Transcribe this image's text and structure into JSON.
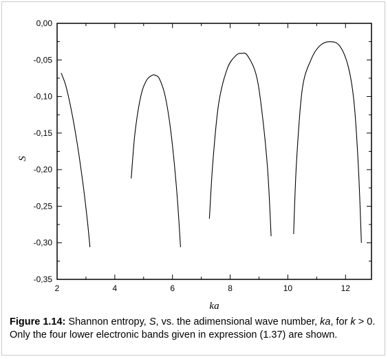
{
  "chart_data": {
    "type": "line",
    "title": "",
    "xlabel": "ka",
    "ylabel": "S",
    "xlim": [
      2.0,
      12.9
    ],
    "ylim": [
      -0.35,
      0.0
    ],
    "xticks": [
      2,
      4,
      6,
      8,
      10,
      12
    ],
    "xtick_labels": [
      "2",
      "4",
      "6",
      "8",
      "10",
      "12"
    ],
    "yticks": [
      0.0,
      -0.05,
      -0.1,
      -0.15,
      -0.2,
      -0.25,
      -0.3,
      -0.35
    ],
    "ytick_labels": [
      "0,00",
      "-0,05",
      "-0,10",
      "-0,15",
      "-0,20",
      "-0,25",
      "-0,30",
      "-0,35"
    ],
    "grid": false,
    "series": [
      {
        "x": [
          2.14,
          2.3,
          2.5,
          2.7,
          2.9,
          3.05,
          3.14
        ],
        "y": [
          -0.068,
          -0.085,
          -0.12,
          -0.165,
          -0.22,
          -0.27,
          -0.306
        ]
      },
      {
        "x": [
          4.57,
          4.7,
          4.9,
          5.1,
          5.3,
          5.4,
          5.55,
          5.75,
          5.95,
          6.15,
          6.28
        ],
        "y": [
          -0.212,
          -0.15,
          -0.1,
          -0.078,
          -0.071,
          -0.071,
          -0.076,
          -0.1,
          -0.15,
          -0.23,
          -0.306
        ]
      },
      {
        "x": [
          7.28,
          7.4,
          7.6,
          7.9,
          8.2,
          8.4,
          8.6,
          8.9,
          9.1,
          9.3,
          9.42
        ],
        "y": [
          -0.267,
          -0.19,
          -0.11,
          -0.062,
          -0.044,
          -0.041,
          -0.044,
          -0.07,
          -0.12,
          -0.2,
          -0.291
        ]
      },
      {
        "x": [
          10.2,
          10.3,
          10.5,
          10.8,
          11.1,
          11.45,
          11.8,
          12.1,
          12.3,
          12.45,
          12.55
        ],
        "y": [
          -0.288,
          -0.19,
          -0.09,
          -0.05,
          -0.031,
          -0.025,
          -0.031,
          -0.06,
          -0.11,
          -0.2,
          -0.3
        ]
      }
    ]
  },
  "caption": {
    "label": "Figure 1.14:",
    "text_1": " Shannon entropy, ",
    "sym_s": "S",
    "text_2": ", vs. the adimensional wave number, ",
    "sym_ka": "ka",
    "text_3": ", for ",
    "sym_k": "k",
    "text_4": " > 0. Only the four lower electronic bands given in expression (1.37) are shown."
  }
}
